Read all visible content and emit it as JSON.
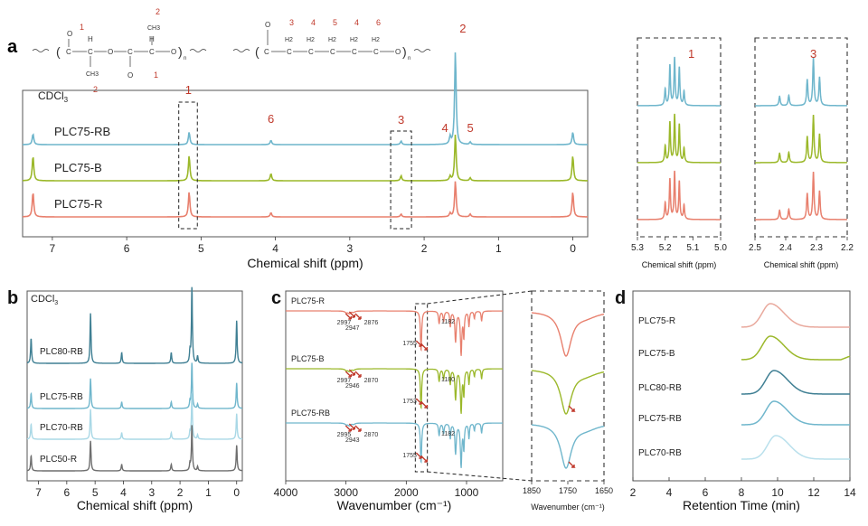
{
  "panel_labels": {
    "a": "a",
    "b": "b",
    "c": "c",
    "d": "d"
  },
  "structures": {
    "lactide": {
      "atoms": [
        "O",
        "C",
        "C",
        "O",
        "C",
        "C",
        "O",
        "H",
        "H",
        "CH3",
        "CH3",
        "O",
        "n"
      ],
      "numbers": [
        "1",
        "2",
        "1",
        "2"
      ]
    },
    "caprolactone": {
      "atoms": [
        "O",
        "C",
        "C",
        "C",
        "C",
        "C",
        "C",
        "O",
        "H2",
        "H2",
        "H2",
        "H2",
        "H2",
        "n"
      ],
      "numbers": [
        "3",
        "4",
        "5",
        "4",
        "6"
      ]
    }
  },
  "colors": {
    "rb": "#6fb6cc",
    "b": "#9bb82a",
    "r": "#e8806e",
    "plc80rb": "#3f7f93",
    "plc75rb": "#6fb6cc",
    "plc70rb": "#a9d8e6",
    "plc50r": "#6e6e6e",
    "red_label": "#c0392b"
  },
  "chart_data": [
    {
      "id": "a-main",
      "type": "line",
      "title": "",
      "xlabel": "Chemical shift (ppm)",
      "ylabel": "",
      "xlim": [
        7.4,
        -0.2
      ],
      "xticks": [
        "7",
        "6",
        "5",
        "4",
        "3",
        "2",
        "1",
        "0"
      ],
      "solvent_label": "CDCl3",
      "series": [
        {
          "name": "PLC75-RB",
          "color": "rb",
          "peaks": [
            [
              7.26,
              0.3
            ],
            [
              5.16,
              0.35
            ],
            [
              4.06,
              0.12
            ],
            [
              2.31,
              0.1
            ],
            [
              1.65,
              0.2
            ],
            [
              1.58,
              2.6
            ],
            [
              1.38,
              0.07
            ],
            [
              0.0,
              0.35
            ]
          ]
        },
        {
          "name": "PLC75-B",
          "color": "b",
          "peaks": [
            [
              7.26,
              0.7
            ],
            [
              5.16,
              0.7
            ],
            [
              4.06,
              0.2
            ],
            [
              2.31,
              0.14
            ],
            [
              1.65,
              0.12
            ],
            [
              1.58,
              1.3
            ],
            [
              1.38,
              0.08
            ],
            [
              0.0,
              0.7
            ]
          ]
        },
        {
          "name": "PLC75-R",
          "color": "r",
          "peaks": [
            [
              7.26,
              0.7
            ],
            [
              5.16,
              0.7
            ],
            [
              4.06,
              0.12
            ],
            [
              2.31,
              0.08
            ],
            [
              1.65,
              0.1
            ],
            [
              1.58,
              1.0
            ],
            [
              1.38,
              0.08
            ],
            [
              0.0,
              0.7
            ]
          ]
        }
      ],
      "peak_labels": [
        "1",
        "6",
        "3",
        "4",
        "5",
        "2"
      ]
    },
    {
      "id": "a-inset1",
      "type": "line",
      "xlabel": "Chemical shift (ppm)",
      "xlim": [
        5.3,
        5.0
      ],
      "xticks": [
        "5.3",
        "5.2",
        "5.1",
        "5.0"
      ],
      "label": "1",
      "peaks": [
        [
          5.2,
          0.35
        ],
        [
          5.183,
          0.85
        ],
        [
          5.166,
          1.0
        ],
        [
          5.149,
          0.8
        ],
        [
          5.132,
          0.3
        ]
      ]
    },
    {
      "id": "a-inset2",
      "type": "line",
      "xlabel": "Chemical shift (ppm)",
      "xlim": [
        2.5,
        2.2
      ],
      "xticks": [
        "2.5",
        "2.4",
        "2.3",
        "2.2"
      ],
      "label": "3",
      "peaks": [
        [
          2.42,
          0.2
        ],
        [
          2.39,
          0.22
        ],
        [
          2.33,
          0.55
        ],
        [
          2.31,
          1.0
        ],
        [
          2.29,
          0.6
        ]
      ]
    },
    {
      "id": "b",
      "type": "line",
      "xlabel": "Chemical shift (ppm)",
      "xlim": [
        7.4,
        -0.2
      ],
      "xticks": [
        "7",
        "6",
        "5",
        "4",
        "3",
        "2",
        "1",
        "0"
      ],
      "solvent_label": "CDCl3",
      "series": [
        {
          "name": "PLC80-RB",
          "color": "plc80rb"
        },
        {
          "name": "PLC75-RB",
          "color": "plc75rb"
        },
        {
          "name": "PLC70-RB",
          "color": "plc70rb"
        },
        {
          "name": "PLC50-R",
          "color": "plc50r"
        }
      ]
    },
    {
      "id": "c",
      "type": "line",
      "xlabel": "Wavenumber (cm⁻¹)",
      "xlim": [
        4000,
        400
      ],
      "xticks": [
        "4000",
        "3000",
        "2000",
        "1000"
      ],
      "series": [
        {
          "name": "PLC75-R",
          "color": "r",
          "annotations": [
            "2997",
            "2947",
            "2876",
            "1755",
            "1182"
          ]
        },
        {
          "name": "PLC75-B",
          "color": "b",
          "annotations": [
            "2997",
            "2946",
            "2870",
            "1753",
            "1180"
          ]
        },
        {
          "name": "PLC75-RB",
          "color": "plc75rb",
          "annotations": [
            "2995",
            "2943",
            "2870",
            "1755",
            "1182"
          ]
        }
      ]
    },
    {
      "id": "c-inset",
      "type": "line",
      "xlabel": "Wavenumber (cm⁻¹)",
      "xlim": [
        1850,
        1650
      ],
      "xticks": [
        "1850",
        "1750",
        "1650"
      ]
    },
    {
      "id": "d",
      "type": "line",
      "xlabel": "Retention Time (min)",
      "xlim": [
        2,
        14
      ],
      "xticks": [
        "2",
        "4",
        "6",
        "8",
        "10",
        "12",
        "14"
      ],
      "series": [
        {
          "name": "PLC75-R",
          "color": "#e9a99d",
          "peak": 9.6
        },
        {
          "name": "PLC75-B",
          "color": "#9bb82a",
          "peak": 9.6
        },
        {
          "name": "PLC80-RB",
          "color": "#3f7f93",
          "peak": 9.8
        },
        {
          "name": "PLC75-RB",
          "color": "#6fb6cc",
          "peak": 9.8
        },
        {
          "name": "PLC70-RB",
          "color": "#b9e0ec",
          "peak": 9.9
        }
      ]
    }
  ]
}
